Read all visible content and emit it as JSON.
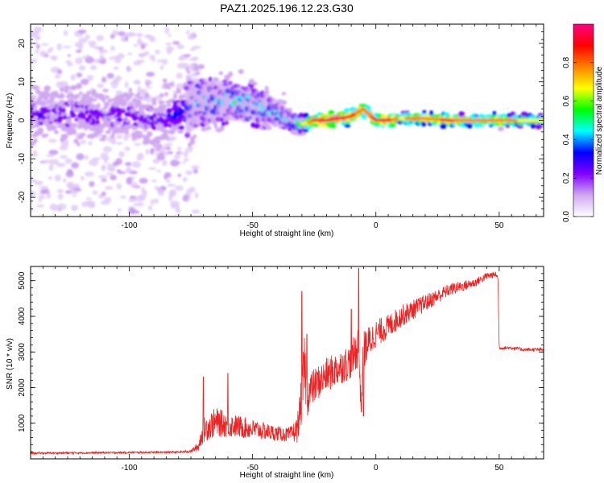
{
  "title": "PAZ1.2025.196.12.23.G30",
  "chart_data": [
    {
      "type": "heatmap",
      "xlabel": "Height of straight line (km)",
      "ylabel": "Frequency (Hz)",
      "xlim": [
        -140,
        68
      ],
      "ylim": [
        -25,
        25
      ],
      "xticks": [
        -100,
        -50,
        0,
        50
      ],
      "yticks": [
        -20,
        -10,
        0,
        10,
        20
      ],
      "colorbar": {
        "label": "Normalized spectral amplitude",
        "range": [
          0,
          1
        ],
        "ticks": [
          "0.0",
          "0.2",
          "0.4",
          "0.6",
          "0.8"
        ],
        "colors": [
          "#ffffff",
          "#d0a8f0",
          "#8000ff",
          "#0000ff",
          "#00ffff",
          "#00ff00",
          "#ffff00",
          "#ff8000",
          "#ff0000",
          "#ff0080"
        ]
      },
      "ridge": {
        "x": [
          -140,
          -120,
          -100,
          -85,
          -75,
          -70,
          -60,
          -50,
          -45,
          -40,
          -35,
          -30,
          -25,
          -20,
          -10,
          -5,
          0,
          5,
          10,
          20,
          30,
          40,
          50,
          60,
          68
        ],
        "freq": [
          1,
          2,
          1,
          0,
          4,
          5,
          5,
          4,
          3,
          2,
          0,
          -1,
          0,
          0,
          1,
          3,
          0,
          0,
          0.5,
          0.5,
          0,
          0,
          0,
          0,
          0
        ],
        "amplitude": [
          0.3,
          0.3,
          0.3,
          0.3,
          0.45,
          0.5,
          0.5,
          0.55,
          0.5,
          0.45,
          0.5,
          0.6,
          0.85,
          0.9,
          0.85,
          0.8,
          0.85,
          0.9,
          0.7,
          0.8,
          0.85,
          0.75,
          0.8,
          0.7,
          0.7
        ],
        "scatter_halfwidth": [
          20,
          20,
          20,
          20,
          8,
          7,
          6,
          5,
          5,
          4,
          3,
          2,
          1.5,
          1.5,
          1.5,
          1.5,
          1.2,
          1.2,
          1.2,
          1.2,
          1.2,
          1.2,
          1.2,
          1.2,
          1.2
        ]
      }
    },
    {
      "type": "line",
      "xlabel": "Height of straight line (km)",
      "ylabel": "SNR (10 * v/v)",
      "xlim": [
        -140,
        68
      ],
      "ylim": [
        0,
        5400
      ],
      "xticks": [
        -100,
        -50,
        0,
        50
      ],
      "yticks": [
        1000,
        2000,
        3000,
        4000,
        5000
      ],
      "color": "#ee2222",
      "series": [
        {
          "x": [
            -140,
            -120,
            -100,
            -80,
            -75,
            -72,
            -70,
            -65,
            -60,
            -55,
            -50,
            -45,
            -40,
            -35,
            -32,
            -30,
            -29,
            -28,
            -25,
            -20,
            -15,
            -10,
            -7,
            -6,
            -5,
            0,
            5,
            10,
            20,
            30,
            40,
            45,
            49,
            49.5,
            50,
            55,
            60,
            68
          ],
          "y": [
            150,
            160,
            170,
            180,
            200,
            300,
            700,
            900,
            850,
            800,
            750,
            700,
            650,
            600,
            700,
            1500,
            2500,
            1600,
            1900,
            2200,
            2400,
            2600,
            3000,
            1300,
            2900,
            3400,
            3600,
            3900,
            4300,
            4700,
            4900,
            5100,
            5150,
            5000,
            3100,
            3100,
            3050,
            3050
          ],
          "noise": [
            40,
            40,
            40,
            40,
            60,
            200,
            500,
            600,
            500,
            450,
            400,
            350,
            300,
            300,
            500,
            1000,
            1200,
            900,
            700,
            700,
            700,
            700,
            900,
            400,
            800,
            550,
            500,
            450,
            350,
            250,
            180,
            150,
            120,
            120,
            70,
            70,
            70,
            70
          ]
        }
      ]
    }
  ]
}
